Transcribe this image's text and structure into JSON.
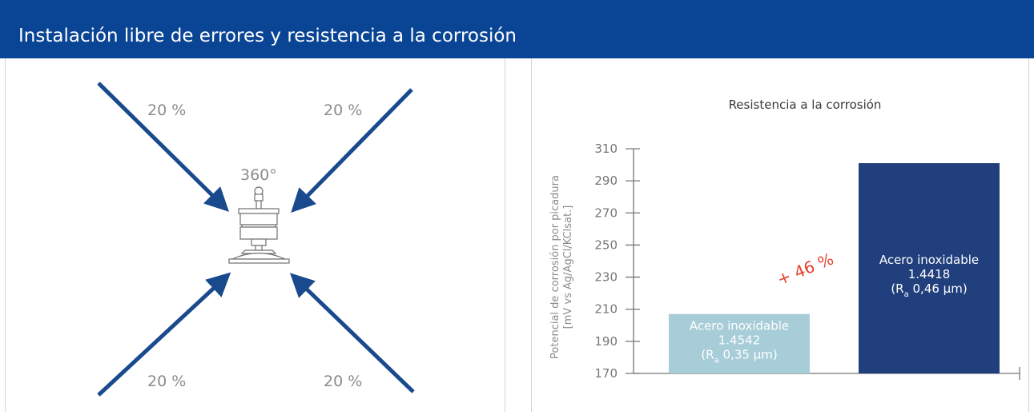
{
  "header": {
    "title": "Instalación libre de errores y resistencia a la corrosión"
  },
  "illustration": {
    "rotation_label": "360°",
    "arrows": [
      {
        "position": "top-left",
        "label": "20 %"
      },
      {
        "position": "top-right",
        "label": "20 %"
      },
      {
        "position": "bottom-left",
        "label": "20 %"
      },
      {
        "position": "bottom-right",
        "label": "20 %"
      }
    ],
    "arrow_color": "#1a4a8e"
  },
  "chart_data": {
    "type": "bar",
    "title": "Resistencia a la corrosión",
    "ylabel_line1": "Potencial de corrosión por picadura",
    "ylabel_line2": "[mV vs Ag/AgCl/KClsat.]",
    "ylim": [
      170,
      310
    ],
    "yticks": [
      170,
      190,
      210,
      230,
      250,
      270,
      290,
      310
    ],
    "grid": false,
    "bars": [
      {
        "line1": "Acero inoxidable",
        "line2": "1.4542",
        "line3": "(R",
        "line3_sub": "a",
        "line3_rest": " 0,35 µm)",
        "value": 207,
        "color": "#a7cdd8"
      },
      {
        "line1": "Acero inoxidable",
        "line2": "1.4418",
        "line3": "(R",
        "line3_sub": "a",
        "line3_rest": " 0,46 µm)",
        "value": 301,
        "color": "#203f7c"
      }
    ],
    "annotation": "+ 46 %",
    "annotation_color": "#e8402f"
  }
}
